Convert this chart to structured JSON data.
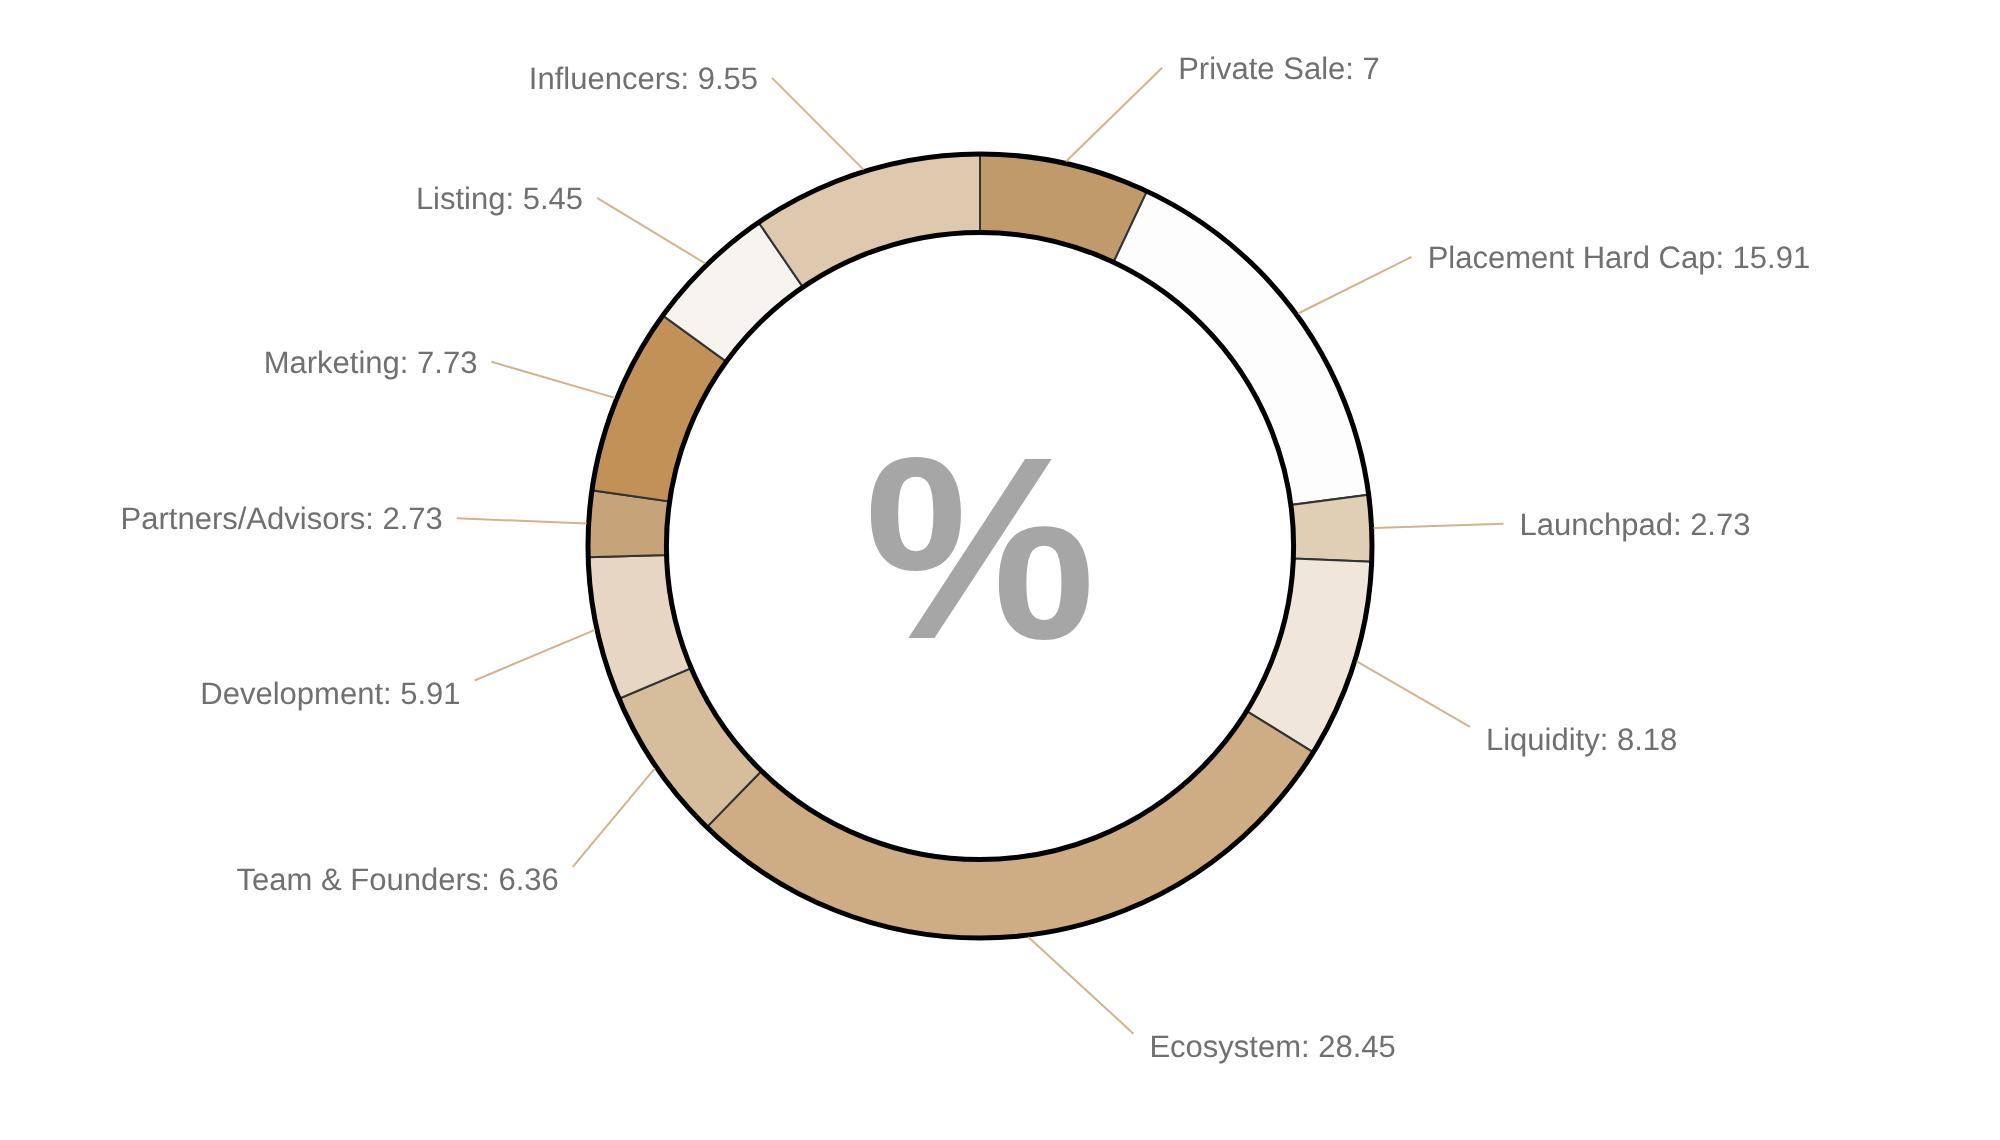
{
  "chart_data": {
    "type": "donut",
    "categories": [
      "Private Sale",
      "Placement Hard Cap",
      "Launchpad",
      "Liquidity",
      "Ecosystem",
      "Team & Founders",
      "Development",
      "Partners/Advisors",
      "Marketing",
      "Listing",
      "Influencers"
    ],
    "values": [
      7,
      15.91,
      2.73,
      8.18,
      28.45,
      6.36,
      5.91,
      2.73,
      7.73,
      5.45,
      9.55
    ],
    "value_labels": [
      ": 7",
      ": 15.91",
      ": 2.73",
      ": 8.18",
      ": 28.45",
      ": 6.36",
      ": 5.91",
      ": 2.73",
      ": 7.73",
      ": 5.45",
      ": 9.55"
    ],
    "colors": [
      "#c19a6b",
      "#fdfdfd",
      "#e0cfb5",
      "#f0e6da",
      "#ceac84",
      "#d6bd9b",
      "#e7d6c3",
      "#c6a379",
      "#c19158",
      "#f7f3ee",
      "#dfc9ae"
    ],
    "annotations": [
      "%"
    ]
  }
}
